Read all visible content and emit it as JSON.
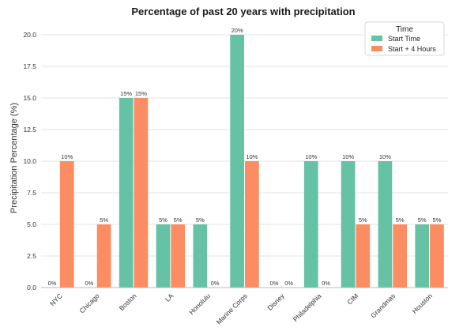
{
  "chart_data": {
    "type": "bar",
    "title": "Percentage of past 20 years with precipitation",
    "xlabel": "",
    "ylabel": "Precipitation Percentage (%)",
    "ylim": [
      0,
      21
    ],
    "yticks": [
      "0.0",
      "2.5",
      "5.0",
      "7.5",
      "10.0",
      "12.5",
      "15.0",
      "17.5",
      "20.0"
    ],
    "ytick_values": [
      0,
      2.5,
      5,
      7.5,
      10,
      12.5,
      15,
      17.5,
      20
    ],
    "grid": "horizontal",
    "categories": [
      "NYC",
      "Chicago",
      "Boston",
      "LA",
      "Honolulu",
      "Marine Corps",
      "Disney",
      "Philadelphia",
      "CIM",
      "Grandmas",
      "Houston"
    ],
    "series": [
      {
        "name": "Start Time",
        "color": "#66c2a5",
        "values": [
          0,
          0,
          15,
          5,
          5,
          20,
          0,
          10,
          10,
          10,
          5
        ],
        "labels": [
          "0%",
          "0%",
          "15%",
          "5%",
          "5%",
          "20%",
          "0%",
          "10%",
          "10%",
          "10%",
          "5%"
        ]
      },
      {
        "name": "Start + 4 Hours",
        "color": "#fc8d62",
        "values": [
          10,
          5,
          15,
          5,
          0,
          10,
          0,
          0,
          5,
          5,
          5
        ],
        "labels": [
          "10%",
          "5%",
          "15%",
          "5%",
          "0%",
          "10%",
          "0%",
          "0%",
          "5%",
          "5%",
          "5%"
        ]
      }
    ],
    "legend": {
      "title": "Time",
      "placement": "top-right"
    }
  }
}
